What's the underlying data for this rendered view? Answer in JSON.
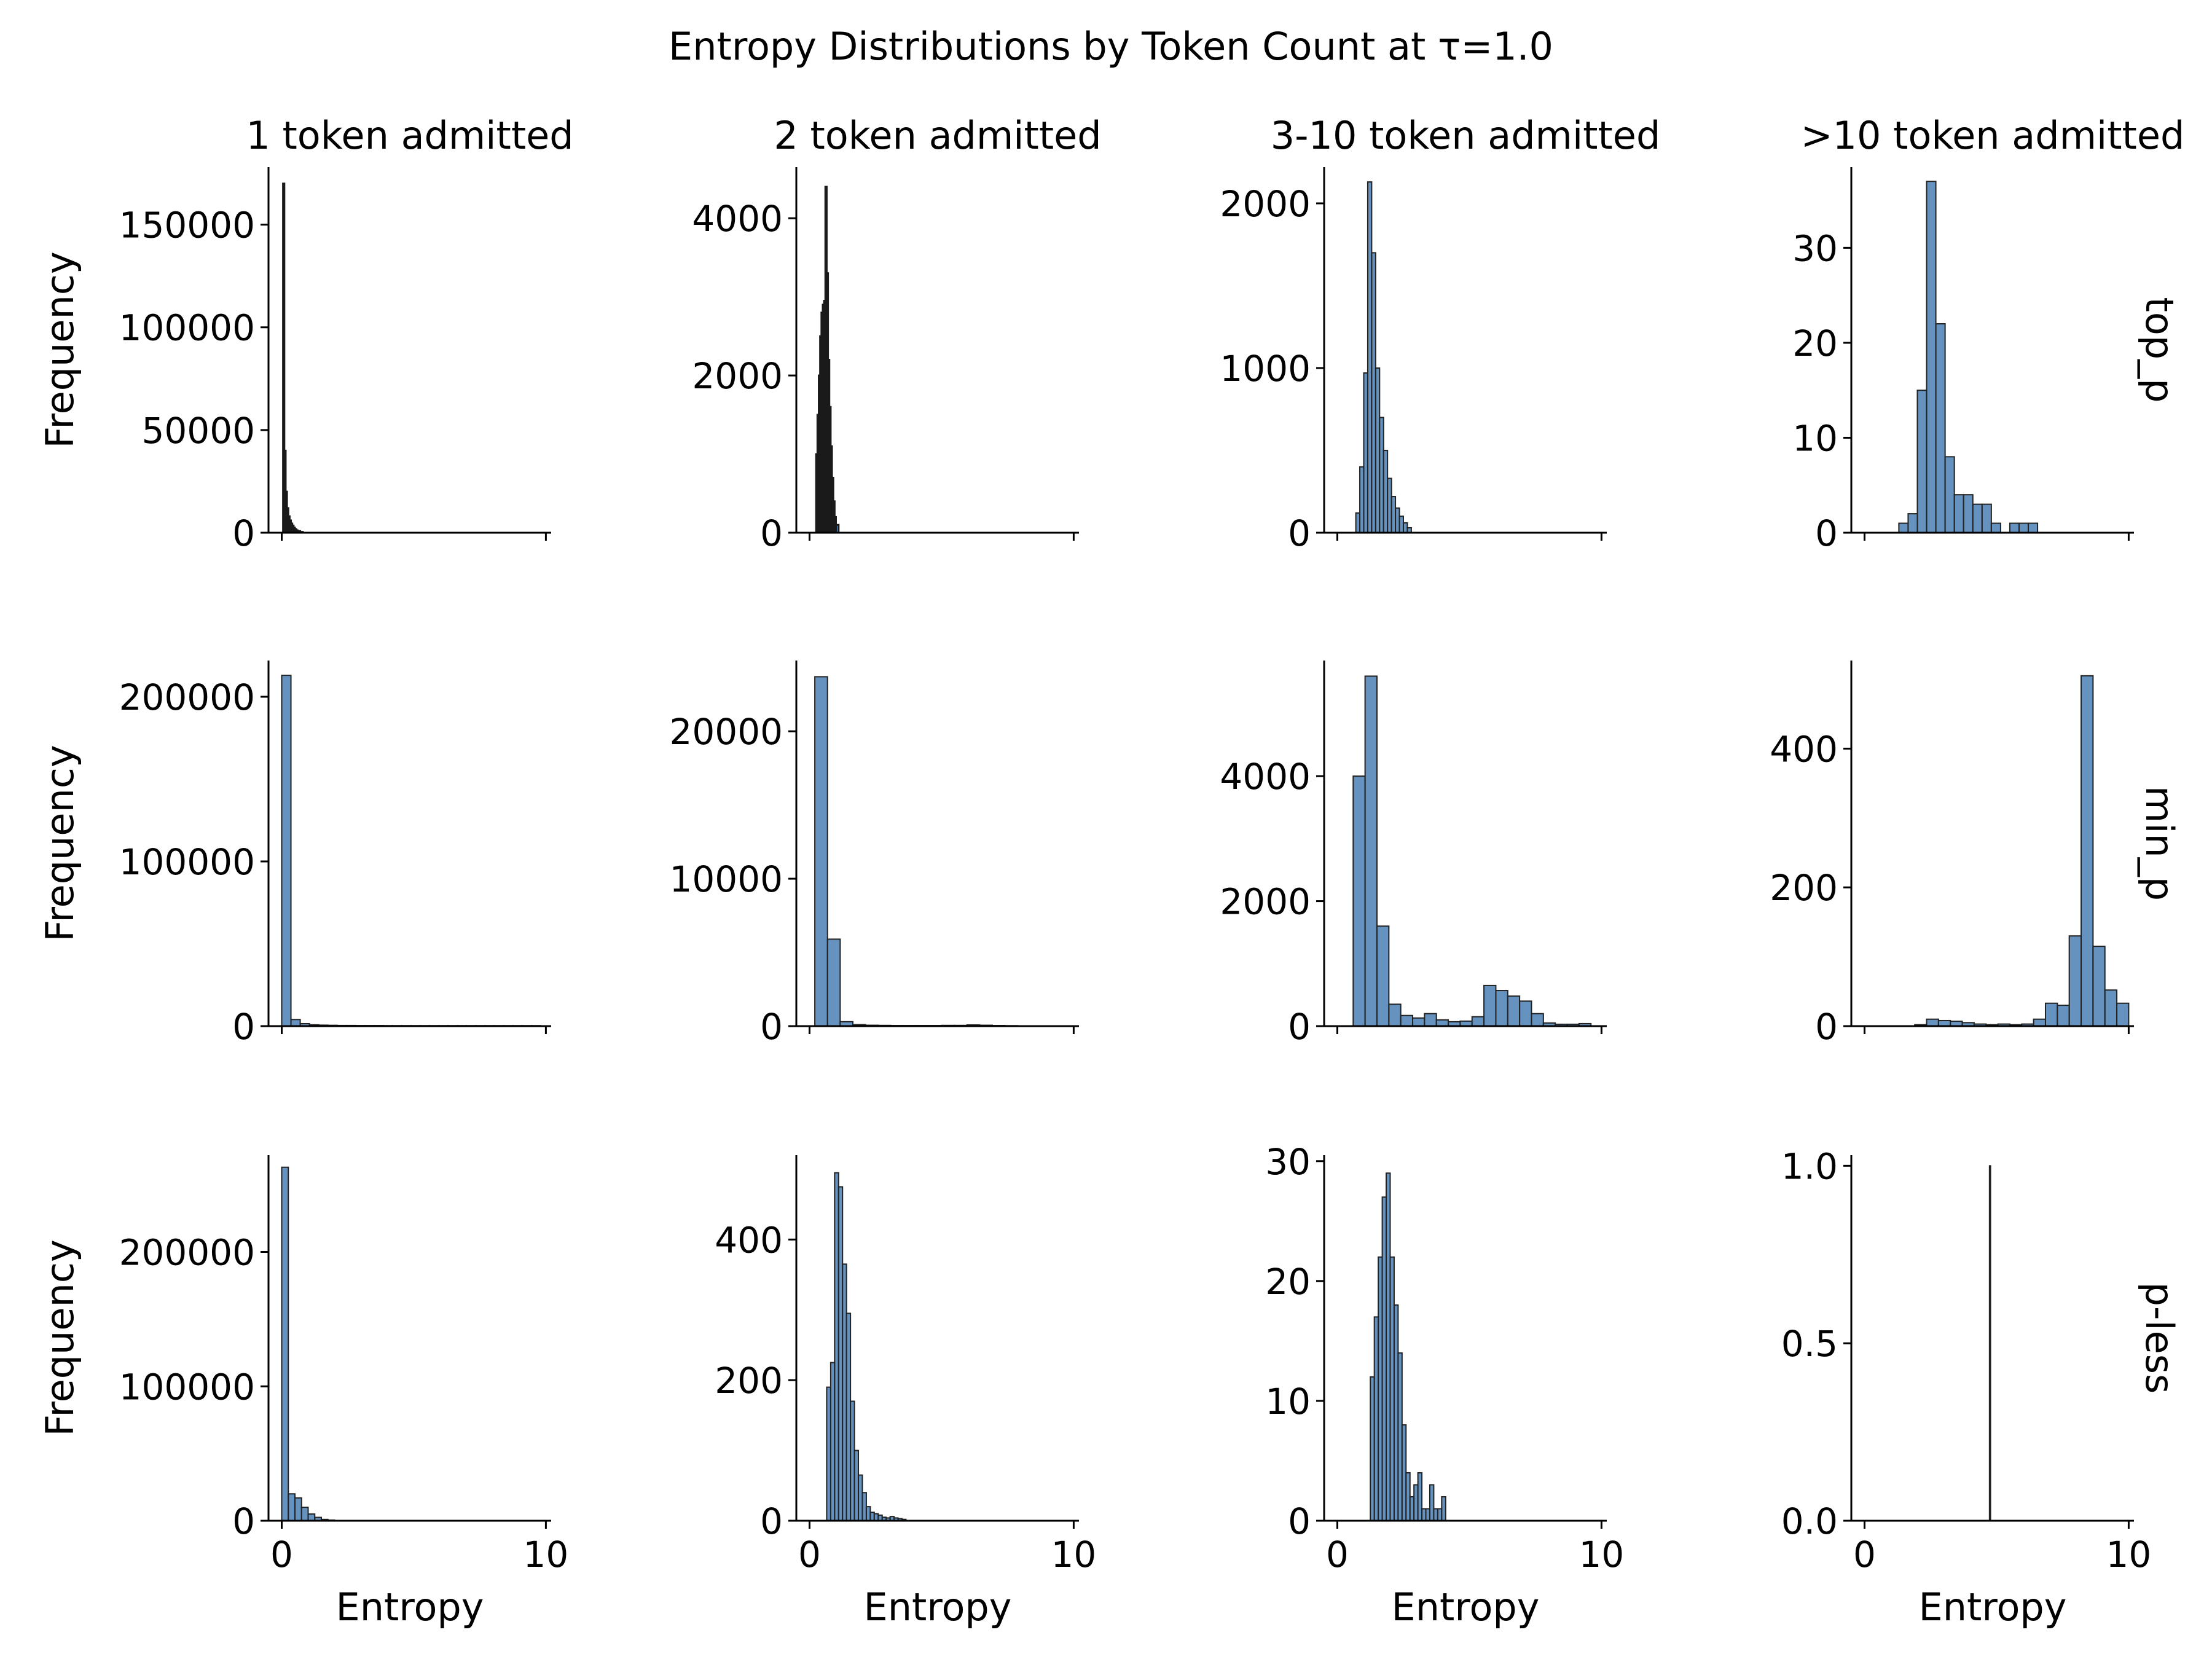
{
  "figure": {
    "title": "Entropy Distributions by Token Count at τ=1.0",
    "columns": [
      "1 token admitted",
      "2 token admitted",
      "3-10 token admitted",
      ">10 token admitted"
    ],
    "rows": [
      "top_p",
      "min_p",
      "p-less"
    ],
    "xlabel": "Entropy",
    "ylabel": "Frequency",
    "bar_color": "#4a7fb4",
    "edge_color": "#1a1a1a"
  },
  "chart_data": [
    {
      "type": "bar",
      "row": "top_p",
      "column": "1 token admitted",
      "xlim": [
        -0.5,
        10.2
      ],
      "ylim": [
        0,
        178000
      ],
      "yticks": [
        0,
        50000,
        100000,
        150000
      ],
      "xticks": [
        0,
        10
      ],
      "dense": true,
      "bins": [
        [
          0.05,
          0.1,
          170000
        ],
        [
          0.1,
          0.15,
          40000
        ],
        [
          0.15,
          0.2,
          20000
        ],
        [
          0.2,
          0.25,
          12000
        ],
        [
          0.25,
          0.3,
          8000
        ],
        [
          0.3,
          0.35,
          6000
        ],
        [
          0.35,
          0.4,
          4500
        ],
        [
          0.4,
          0.45,
          3500
        ],
        [
          0.45,
          0.5,
          2500
        ],
        [
          0.5,
          0.55,
          1800
        ],
        [
          0.55,
          0.6,
          1200
        ],
        [
          0.6,
          0.7,
          800
        ],
        [
          0.7,
          0.8,
          400
        ]
      ]
    },
    {
      "type": "bar",
      "row": "top_p",
      "column": "2 token admitted",
      "xlim": [
        -0.5,
        10.2
      ],
      "ylim": [
        0,
        4650
      ],
      "yticks": [
        0,
        2000,
        4000
      ],
      "xticks": [
        0,
        10
      ],
      "dense": true,
      "bins": [
        [
          0.25,
          0.3,
          1000
        ],
        [
          0.3,
          0.35,
          1500
        ],
        [
          0.35,
          0.4,
          2000
        ],
        [
          0.4,
          0.45,
          2500
        ],
        [
          0.45,
          0.5,
          2800
        ],
        [
          0.5,
          0.55,
          2900
        ],
        [
          0.55,
          0.6,
          2950
        ],
        [
          0.6,
          0.65,
          4400
        ],
        [
          0.65,
          0.7,
          3300
        ],
        [
          0.7,
          0.75,
          2200
        ],
        [
          0.75,
          0.8,
          1600
        ],
        [
          0.8,
          0.85,
          1100
        ],
        [
          0.85,
          0.9,
          700
        ],
        [
          0.9,
          0.95,
          400
        ],
        [
          0.95,
          1.0,
          200
        ],
        [
          1.0,
          1.1,
          100
        ]
      ]
    },
    {
      "type": "bar",
      "row": "top_p",
      "column": "3-10 token admitted",
      "xlim": [
        -0.5,
        10.2
      ],
      "ylim": [
        0,
        2220
      ],
      "yticks": [
        0,
        1000,
        2000
      ],
      "xticks": [
        0,
        10
      ],
      "bins": [
        [
          0.7,
          0.85,
          120
        ],
        [
          0.85,
          1.0,
          400
        ],
        [
          1.0,
          1.15,
          970
        ],
        [
          1.15,
          1.3,
          2130
        ],
        [
          1.3,
          1.45,
          1700
        ],
        [
          1.45,
          1.6,
          1000
        ],
        [
          1.6,
          1.75,
          700
        ],
        [
          1.75,
          1.9,
          500
        ],
        [
          1.9,
          2.05,
          330
        ],
        [
          2.05,
          2.2,
          220
        ],
        [
          2.2,
          2.35,
          150
        ],
        [
          2.35,
          2.5,
          100
        ],
        [
          2.5,
          2.65,
          60
        ],
        [
          2.65,
          2.8,
          30
        ]
      ]
    },
    {
      "type": "bar",
      "row": "top_p",
      "column": ">10 token admitted",
      "xlim": [
        -0.5,
        10.2
      ],
      "ylim": [
        0,
        38.5
      ],
      "yticks": [
        0,
        10,
        20,
        30
      ],
      "xticks": [
        0,
        10
      ],
      "bins": [
        [
          1.3,
          1.65,
          1
        ],
        [
          1.65,
          2.0,
          2
        ],
        [
          2.0,
          2.35,
          15
        ],
        [
          2.35,
          2.7,
          37
        ],
        [
          2.7,
          3.05,
          22
        ],
        [
          3.05,
          3.4,
          8
        ],
        [
          3.4,
          3.75,
          4
        ],
        [
          3.75,
          4.1,
          4
        ],
        [
          4.1,
          4.45,
          3
        ],
        [
          4.45,
          4.8,
          3
        ],
        [
          4.8,
          5.15,
          1
        ],
        [
          5.5,
          5.85,
          1
        ],
        [
          5.85,
          6.2,
          1
        ],
        [
          6.2,
          6.55,
          1
        ]
      ]
    },
    {
      "type": "bar",
      "row": "min_p",
      "column": "1 token admitted",
      "xlim": [
        -0.5,
        10.2
      ],
      "ylim": [
        0,
        222000
      ],
      "yticks": [
        0,
        100000,
        200000
      ],
      "xticks": [
        0,
        10
      ],
      "bins": [
        [
          0.0,
          0.35,
          213000
        ],
        [
          0.35,
          0.7,
          4000
        ],
        [
          0.7,
          1.05,
          1500
        ],
        [
          1.05,
          1.4,
          800
        ],
        [
          1.4,
          1.75,
          600
        ],
        [
          1.75,
          2.1,
          500
        ],
        [
          2.1,
          2.45,
          400
        ],
        [
          2.45,
          2.8,
          400
        ],
        [
          2.8,
          3.15,
          350
        ],
        [
          3.15,
          3.5,
          350
        ],
        [
          3.5,
          3.85,
          350
        ],
        [
          3.85,
          4.2,
          300
        ],
        [
          4.2,
          4.55,
          300
        ],
        [
          4.55,
          4.9,
          300
        ],
        [
          4.9,
          5.25,
          300
        ],
        [
          5.25,
          5.6,
          300
        ],
        [
          5.6,
          5.95,
          300
        ],
        [
          5.95,
          6.3,
          300
        ],
        [
          6.3,
          6.65,
          300
        ],
        [
          6.65,
          7.0,
          300
        ],
        [
          7.0,
          7.35,
          300
        ],
        [
          7.35,
          7.7,
          300
        ],
        [
          7.7,
          8.05,
          300
        ],
        [
          8.05,
          8.4,
          300
        ],
        [
          8.4,
          8.75,
          300
        ],
        [
          8.75,
          9.1,
          300
        ],
        [
          9.1,
          9.45,
          300
        ],
        [
          9.45,
          9.8,
          300
        ]
      ]
    },
    {
      "type": "bar",
      "row": "min_p",
      "column": "2 token admitted",
      "xlim": [
        -0.5,
        10.2
      ],
      "ylim": [
        0,
        24800
      ],
      "yticks": [
        0,
        10000,
        20000
      ],
      "xticks": [
        0,
        10
      ],
      "bins": [
        [
          0.2,
          0.68,
          23700
        ],
        [
          0.68,
          1.16,
          5900
        ],
        [
          1.16,
          1.64,
          300
        ],
        [
          1.64,
          2.12,
          100
        ],
        [
          2.12,
          2.6,
          60
        ],
        [
          2.6,
          3.08,
          50
        ],
        [
          3.08,
          3.56,
          40
        ],
        [
          3.56,
          4.04,
          40
        ],
        [
          4.04,
          4.52,
          40
        ],
        [
          4.52,
          5.0,
          40
        ],
        [
          5.0,
          5.48,
          50
        ],
        [
          5.48,
          5.96,
          50
        ],
        [
          5.96,
          6.44,
          80
        ],
        [
          6.44,
          6.92,
          60
        ],
        [
          6.92,
          7.4,
          40
        ],
        [
          7.4,
          7.88,
          30
        ],
        [
          7.88,
          8.36,
          20
        ],
        [
          8.36,
          8.84,
          20
        ],
        [
          8.84,
          9.32,
          20
        ],
        [
          9.32,
          9.8,
          20
        ]
      ]
    },
    {
      "type": "bar",
      "row": "min_p",
      "column": "3-10 token admitted",
      "xlim": [
        -0.5,
        10.2
      ],
      "ylim": [
        0,
        5850
      ],
      "yticks": [
        0,
        2000,
        4000
      ],
      "xticks": [
        0,
        10
      ],
      "bins": [
        [
          0.6,
          1.05,
          4000
        ],
        [
          1.05,
          1.5,
          5600
        ],
        [
          1.5,
          1.95,
          1600
        ],
        [
          1.95,
          2.4,
          350
        ],
        [
          2.4,
          2.85,
          170
        ],
        [
          2.85,
          3.3,
          130
        ],
        [
          3.3,
          3.75,
          200
        ],
        [
          3.75,
          4.2,
          100
        ],
        [
          4.2,
          4.65,
          70
        ],
        [
          4.65,
          5.1,
          80
        ],
        [
          5.1,
          5.55,
          150
        ],
        [
          5.55,
          6.0,
          650
        ],
        [
          6.0,
          6.45,
          570
        ],
        [
          6.45,
          6.9,
          480
        ],
        [
          6.9,
          7.35,
          400
        ],
        [
          7.35,
          7.8,
          200
        ],
        [
          7.8,
          8.25,
          50
        ],
        [
          8.25,
          8.7,
          30
        ],
        [
          8.7,
          9.15,
          30
        ],
        [
          9.15,
          9.6,
          40
        ]
      ]
    },
    {
      "type": "bar",
      "row": "min_p",
      "column": ">10 token admitted",
      "xlim": [
        -0.5,
        10.2
      ],
      "ylim": [
        0,
        527
      ],
      "yticks": [
        0,
        200,
        400
      ],
      "xticks": [
        0,
        10
      ],
      "bins": [
        [
          1.9,
          2.35,
          2
        ],
        [
          2.35,
          2.8,
          10
        ],
        [
          2.8,
          3.25,
          8
        ],
        [
          3.25,
          3.7,
          7
        ],
        [
          3.7,
          4.15,
          5
        ],
        [
          4.15,
          4.6,
          3
        ],
        [
          4.6,
          5.05,
          2
        ],
        [
          5.05,
          5.5,
          3
        ],
        [
          5.5,
          5.95,
          2
        ],
        [
          5.95,
          6.4,
          3
        ],
        [
          6.4,
          6.85,
          10
        ],
        [
          6.85,
          7.3,
          33
        ],
        [
          7.3,
          7.75,
          30
        ],
        [
          7.75,
          8.2,
          130
        ],
        [
          8.2,
          8.65,
          505
        ],
        [
          8.65,
          9.1,
          115
        ],
        [
          9.1,
          9.55,
          52
        ],
        [
          9.55,
          10.0,
          33
        ]
      ]
    },
    {
      "type": "bar",
      "row": "p-less",
      "column": "1 token admitted",
      "xlim": [
        -0.5,
        10.2
      ],
      "ylim": [
        0,
        272000
      ],
      "yticks": [
        0,
        100000,
        200000
      ],
      "xticks": [
        0,
        10
      ],
      "bins": [
        [
          0.0,
          0.25,
          263000
        ],
        [
          0.25,
          0.5,
          20000
        ],
        [
          0.5,
          0.75,
          17000
        ],
        [
          0.75,
          1.0,
          10000
        ],
        [
          1.0,
          1.25,
          5000
        ],
        [
          1.25,
          1.5,
          2500
        ],
        [
          1.5,
          1.75,
          1000
        ],
        [
          1.75,
          2.0,
          500
        ]
      ]
    },
    {
      "type": "bar",
      "row": "p-less",
      "column": "2 token admitted",
      "xlim": [
        -0.5,
        10.2
      ],
      "ylim": [
        0,
        520
      ],
      "yticks": [
        0,
        200,
        400
      ],
      "xticks": [
        0,
        10
      ],
      "bins": [
        [
          0.65,
          0.8,
          190
        ],
        [
          0.8,
          0.95,
          225
        ],
        [
          0.95,
          1.1,
          495
        ],
        [
          1.1,
          1.25,
          475
        ],
        [
          1.25,
          1.4,
          365
        ],
        [
          1.4,
          1.55,
          295
        ],
        [
          1.55,
          1.7,
          170
        ],
        [
          1.7,
          1.85,
          100
        ],
        [
          1.85,
          2.0,
          65
        ],
        [
          2.0,
          2.15,
          40
        ],
        [
          2.15,
          2.3,
          20
        ],
        [
          2.3,
          2.45,
          12
        ],
        [
          2.45,
          2.6,
          10
        ],
        [
          2.6,
          2.75,
          8
        ],
        [
          2.75,
          2.9,
          5
        ],
        [
          2.9,
          3.05,
          4
        ],
        [
          3.05,
          3.2,
          6
        ],
        [
          3.2,
          3.35,
          4
        ],
        [
          3.35,
          3.5,
          3
        ],
        [
          3.5,
          3.65,
          2
        ]
      ]
    },
    {
      "type": "bar",
      "row": "p-less",
      "column": "3-10 token admitted",
      "xlim": [
        -0.5,
        10.2
      ],
      "ylim": [
        0,
        30.5
      ],
      "yticks": [
        0,
        10,
        20,
        30
      ],
      "xticks": [
        0,
        10
      ],
      "bins": [
        [
          1.25,
          1.4,
          12
        ],
        [
          1.4,
          1.55,
          17
        ],
        [
          1.55,
          1.7,
          22
        ],
        [
          1.7,
          1.85,
          27
        ],
        [
          1.85,
          2.0,
          29
        ],
        [
          2.0,
          2.15,
          22
        ],
        [
          2.15,
          2.3,
          18
        ],
        [
          2.3,
          2.45,
          14
        ],
        [
          2.45,
          2.6,
          8
        ],
        [
          2.6,
          2.75,
          4
        ],
        [
          2.75,
          2.9,
          2
        ],
        [
          2.9,
          3.05,
          3
        ],
        [
          3.05,
          3.2,
          4
        ],
        [
          3.2,
          3.35,
          1
        ],
        [
          3.35,
          3.5,
          1
        ],
        [
          3.5,
          3.65,
          3
        ],
        [
          3.65,
          3.8,
          1
        ],
        [
          3.8,
          3.95,
          1
        ],
        [
          3.95,
          4.1,
          2
        ]
      ]
    },
    {
      "type": "bar",
      "row": "p-less",
      "column": ">10 token admitted",
      "xlim": [
        -0.5,
        10.2
      ],
      "ylim": [
        0,
        1.03
      ],
      "yticks": [
        0,
        0.5,
        1.0
      ],
      "ytick_labels": [
        "0.0",
        "0.5",
        "1.0"
      ],
      "xticks": [
        0,
        10
      ],
      "bins": [
        [
          4.73,
          4.77,
          1
        ]
      ]
    }
  ]
}
